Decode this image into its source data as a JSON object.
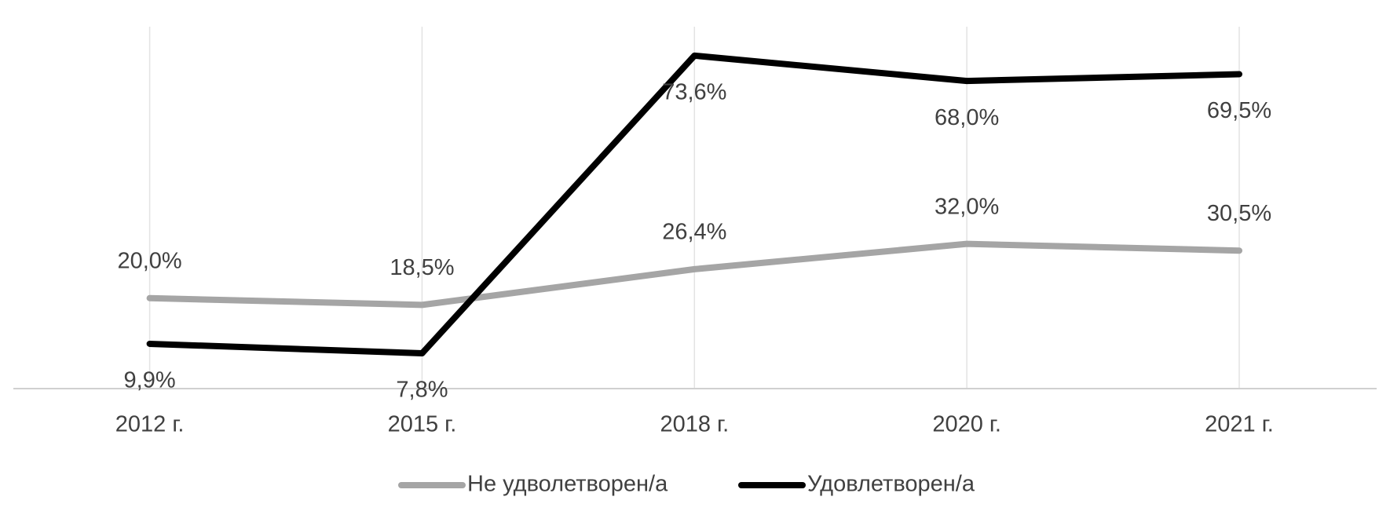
{
  "chart_data": {
    "type": "line",
    "categories": [
      "2012 г.",
      "2015 г.",
      "2018 г.",
      "2020 г.",
      "2021 г."
    ],
    "series": [
      {
        "name": "Не удволетворен/а",
        "color": "#a5a5a5",
        "values": [
          20.0,
          18.5,
          26.4,
          32.0,
          30.5
        ],
        "value_labels": [
          "20,0%",
          "18,5%",
          "26,4%",
          "32,0%",
          "30,5%"
        ]
      },
      {
        "name": "Удовлетворен/а",
        "color": "#000000",
        "values": [
          9.9,
          7.8,
          73.6,
          68.0,
          69.5
        ],
        "value_labels": [
          "9,9%",
          "7,8%",
          "73,6%",
          "68,0%",
          "69,5%"
        ]
      }
    ],
    "ylim": [
      0,
      80
    ],
    "legend": "bottom"
  }
}
